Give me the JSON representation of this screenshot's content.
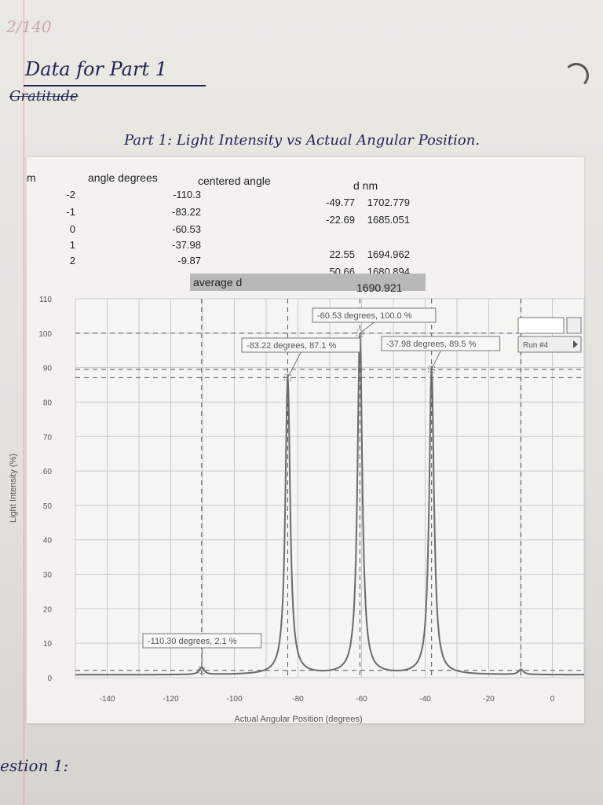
{
  "page": {
    "header_note": "2/140",
    "heading": "Data for Part 1",
    "struck_word": "Gratitude",
    "subtitle": "Part 1: Light Intensity vs Actual Angular Position.",
    "footer_note": "estion 1:"
  },
  "table": {
    "col_m": "m",
    "col_angle": "angle degrees",
    "col_centered": "centered angle",
    "col_d": "d nm",
    "rows": [
      {
        "m": "-2",
        "angle": "-110.3",
        "centered": "-49.77",
        "d": "1702.779"
      },
      {
        "m": "-1",
        "angle": "-83.22",
        "centered": "-22.69",
        "d": "1685.051"
      },
      {
        "m": "0",
        "angle": "-60.53",
        "centered": "",
        "d": ""
      },
      {
        "m": "1",
        "angle": "-37.98",
        "centered": "22.55",
        "d": "1694.962"
      },
      {
        "m": "2",
        "angle": "-9.87",
        "centered": "50.66",
        "d": "1680.894"
      }
    ],
    "average_label": "average d",
    "average_value": "1690.921"
  },
  "chart_data": {
    "type": "line",
    "xlabel": "Actual Angular Position (degrees)",
    "ylabel": "Light Intensity (%)",
    "xlim": [
      -150,
      10
    ],
    "ylim": [
      0,
      110
    ],
    "x_ticks": [
      -140,
      -120,
      -100,
      -80,
      -60,
      -40,
      -20,
      0
    ],
    "y_ticks": [
      0,
      10,
      20,
      30,
      40,
      50,
      60,
      70,
      80,
      90,
      100,
      110
    ],
    "grid": true,
    "peaks": [
      {
        "x": -110.3,
        "y": 2.1
      },
      {
        "x": -83.22,
        "y": 87.1
      },
      {
        "x": -60.53,
        "y": 100.0
      },
      {
        "x": -37.98,
        "y": 89.5
      },
      {
        "x": -9.87,
        "y": 1.5
      }
    ],
    "annotations": [
      {
        "text": "-60.53 degrees, 100.0 %",
        "x": -60.53,
        "y": 100.0
      },
      {
        "text": "-83.22 degrees, 87.1 %",
        "x": -83.22,
        "y": 87.1
      },
      {
        "text": "-37.98 degrees, 89.5 %",
        "x": -37.98,
        "y": 89.5
      },
      {
        "text": "-110.30 degrees, 2.1 %",
        "x": -110.3,
        "y": 2.1
      }
    ],
    "run_label": "Run #4",
    "colors": {
      "line": "#6b6b6b",
      "grid": "#c9c9c9",
      "dash": "#555555"
    }
  }
}
